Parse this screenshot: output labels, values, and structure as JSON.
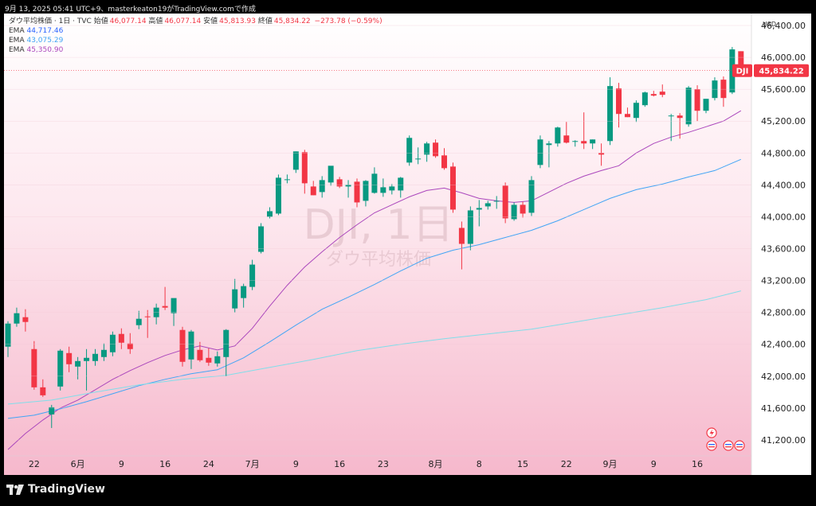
{
  "header": {
    "text": "9月 13, 2025 05:41 UTC+9、masterkeaton19がTradingView.comで作成"
  },
  "legend": {
    "symbol_line": "ダウ平均株価 · 1日 · TVC",
    "open_label": "始値",
    "open_value": "46,077.14",
    "high_label": "高値",
    "high_value": "46,077.14",
    "low_label": "安値",
    "low_value": "45,813.93",
    "close_label": "終値",
    "close_value": "45,834.22",
    "change": "−273.78 (−0.59%)",
    "ema": [
      {
        "label": "EMA",
        "value": "44,717.46",
        "color": "#2962ff"
      },
      {
        "label": "EMA",
        "value": "43,075.29",
        "color": "#42a5f5"
      },
      {
        "label": "EMA",
        "value": "45,350.90",
        "color": "#ab47bc"
      }
    ]
  },
  "watermark": {
    "ticker": "DJI, 1日",
    "name": "ダウ平均株価"
  },
  "price_tag": {
    "symbol": "DJI",
    "value": "45,834.22",
    "color": "#f23645"
  },
  "footer": {
    "brand": "TradingView"
  },
  "chart_data": {
    "type": "candlestick",
    "currency": "USD",
    "ylim": [
      41000,
      46550
    ],
    "y_ticks": [
      41200,
      41600,
      42000,
      42400,
      42800,
      43200,
      43600,
      44000,
      44400,
      44800,
      45200,
      45600,
      46000,
      46400
    ],
    "y_tick_labels": [
      "41,200.00",
      "41,600.00",
      "42,000.00",
      "42,400.00",
      "42,800.00",
      "43,200.00",
      "43,600.00",
      "44,000.00",
      "44,400.00",
      "44,800.00",
      "45,200.00",
      "45,600.00",
      "46,000.00",
      "46,400.00"
    ],
    "x_ticks": [
      {
        "label": "22",
        "index": 3
      },
      {
        "label": "6月",
        "index": 8
      },
      {
        "label": "9",
        "index": 13
      },
      {
        "label": "16",
        "index": 18
      },
      {
        "label": "24",
        "index": 23
      },
      {
        "label": "7月",
        "index": 28
      },
      {
        "label": "9",
        "index": 33
      },
      {
        "label": "16",
        "index": 38
      },
      {
        "label": "23",
        "index": 43
      },
      {
        "label": "8月",
        "index": 49
      },
      {
        "label": "8",
        "index": 54
      },
      {
        "label": "15",
        "index": 59
      },
      {
        "label": "22",
        "index": 64
      },
      {
        "label": "9月",
        "index": 69
      },
      {
        "label": "9",
        "index": 74
      },
      {
        "label": "16",
        "index": 79
      }
    ],
    "candles": [
      {
        "o": 42370,
        "h": 42690,
        "l": 42240,
        "c": 42660
      },
      {
        "o": 42660,
        "h": 42860,
        "l": 42620,
        "c": 42790
      },
      {
        "o": 42740,
        "h": 42840,
        "l": 42560,
        "c": 42680
      },
      {
        "o": 42340,
        "h": 42440,
        "l": 41830,
        "c": 41860
      },
      {
        "o": 41860,
        "h": 41960,
        "l": 41740,
        "c": 41760
      },
      {
        "o": 41520,
        "h": 41640,
        "l": 41350,
        "c": 41610
      },
      {
        "o": 41870,
        "h": 42340,
        "l": 41820,
        "c": 42320
      },
      {
        "o": 42290,
        "h": 42370,
        "l": 42050,
        "c": 42150
      },
      {
        "o": 42120,
        "h": 42240,
        "l": 41960,
        "c": 42190
      },
      {
        "o": 42190,
        "h": 42340,
        "l": 41820,
        "c": 42230
      },
      {
        "o": 42190,
        "h": 42340,
        "l": 42130,
        "c": 42280
      },
      {
        "o": 42240,
        "h": 42410,
        "l": 42190,
        "c": 42330
      },
      {
        "o": 42300,
        "h": 42560,
        "l": 42250,
        "c": 42520
      },
      {
        "o": 42530,
        "h": 42600,
        "l": 42340,
        "c": 42420
      },
      {
        "o": 42410,
        "h": 42540,
        "l": 42280,
        "c": 42340
      },
      {
        "o": 42640,
        "h": 42820,
        "l": 42590,
        "c": 42720
      },
      {
        "o": 42750,
        "h": 42830,
        "l": 42480,
        "c": 42740
      },
      {
        "o": 42740,
        "h": 42910,
        "l": 42650,
        "c": 42860
      },
      {
        "o": 42880,
        "h": 43120,
        "l": 42830,
        "c": 42860
      },
      {
        "o": 42790,
        "h": 42960,
        "l": 42630,
        "c": 42980
      },
      {
        "o": 42580,
        "h": 42620,
        "l": 42120,
        "c": 42180
      },
      {
        "o": 42210,
        "h": 42580,
        "l": 42090,
        "c": 42560
      },
      {
        "o": 42330,
        "h": 42430,
        "l": 42180,
        "c": 42200
      },
      {
        "o": 42230,
        "h": 42350,
        "l": 42130,
        "c": 42170
      },
      {
        "o": 42160,
        "h": 42310,
        "l": 42120,
        "c": 42250
      },
      {
        "o": 42240,
        "h": 42590,
        "l": 42000,
        "c": 42580
      },
      {
        "o": 42850,
        "h": 43220,
        "l": 42800,
        "c": 43090
      },
      {
        "o": 42980,
        "h": 43160,
        "l": 42860,
        "c": 43130
      },
      {
        "o": 43120,
        "h": 43460,
        "l": 43080,
        "c": 43400
      },
      {
        "o": 43560,
        "h": 43920,
        "l": 43540,
        "c": 43880
      },
      {
        "o": 44000,
        "h": 44120,
        "l": 43980,
        "c": 44070
      },
      {
        "o": 44040,
        "h": 44530,
        "l": 44020,
        "c": 44490
      },
      {
        "o": 44470,
        "h": 44530,
        "l": 44420,
        "c": 44470
      },
      {
        "o": 44590,
        "h": 44820,
        "l": 44550,
        "c": 44820
      },
      {
        "o": 44810,
        "h": 44840,
        "l": 44290,
        "c": 44420
      },
      {
        "o": 44380,
        "h": 44450,
        "l": 44270,
        "c": 44270
      },
      {
        "o": 44310,
        "h": 44510,
        "l": 44240,
        "c": 44460
      },
      {
        "o": 44430,
        "h": 44630,
        "l": 44390,
        "c": 44640
      },
      {
        "o": 44470,
        "h": 44500,
        "l": 44360,
        "c": 44380
      },
      {
        "o": 44380,
        "h": 44460,
        "l": 44240,
        "c": 44400
      },
      {
        "o": 44440,
        "h": 44480,
        "l": 44120,
        "c": 44180
      },
      {
        "o": 44200,
        "h": 44460,
        "l": 44130,
        "c": 44450
      },
      {
        "o": 44300,
        "h": 44620,
        "l": 44290,
        "c": 44540
      },
      {
        "o": 44300,
        "h": 44480,
        "l": 44250,
        "c": 44370
      },
      {
        "o": 44330,
        "h": 44410,
        "l": 44280,
        "c": 44380
      },
      {
        "o": 44330,
        "h": 44500,
        "l": 44240,
        "c": 44490
      },
      {
        "o": 44680,
        "h": 45020,
        "l": 44640,
        "c": 44990
      },
      {
        "o": 44720,
        "h": 44870,
        "l": 44660,
        "c": 44730
      },
      {
        "o": 44780,
        "h": 44940,
        "l": 44690,
        "c": 44920
      },
      {
        "o": 44930,
        "h": 44970,
        "l": 44740,
        "c": 44760
      },
      {
        "o": 44770,
        "h": 44860,
        "l": 44590,
        "c": 44610
      },
      {
        "o": 44630,
        "h": 44680,
        "l": 44050,
        "c": 44090
      },
      {
        "o": 43860,
        "h": 43940,
        "l": 43340,
        "c": 43660
      },
      {
        "o": 43660,
        "h": 44130,
        "l": 43580,
        "c": 44080
      },
      {
        "o": 44090,
        "h": 44210,
        "l": 43880,
        "c": 44110
      },
      {
        "o": 44130,
        "h": 44200,
        "l": 44090,
        "c": 44170
      },
      {
        "o": 44190,
        "h": 44260,
        "l": 44100,
        "c": 44200
      },
      {
        "o": 44390,
        "h": 44430,
        "l": 43920,
        "c": 43980
      },
      {
        "o": 43970,
        "h": 44180,
        "l": 43950,
        "c": 44150
      },
      {
        "o": 44150,
        "h": 44190,
        "l": 43990,
        "c": 44040
      },
      {
        "o": 44050,
        "h": 44510,
        "l": 44010,
        "c": 44460
      },
      {
        "o": 44650,
        "h": 45020,
        "l": 44610,
        "c": 44970
      },
      {
        "o": 44900,
        "h": 44950,
        "l": 44620,
        "c": 44920
      },
      {
        "o": 44920,
        "h": 45130,
        "l": 44880,
        "c": 45120
      },
      {
        "o": 45020,
        "h": 45190,
        "l": 44920,
        "c": 44930
      },
      {
        "o": 44940,
        "h": 44960,
        "l": 44880,
        "c": 44950
      },
      {
        "o": 44950,
        "h": 45310,
        "l": 44850,
        "c": 44920
      },
      {
        "o": 44920,
        "h": 44970,
        "l": 44850,
        "c": 44970
      },
      {
        "o": 44800,
        "h": 44920,
        "l": 44640,
        "c": 44780
      },
      {
        "o": 44950,
        "h": 45750,
        "l": 44900,
        "c": 45640
      },
      {
        "o": 45610,
        "h": 45680,
        "l": 45120,
        "c": 45290
      },
      {
        "o": 45290,
        "h": 45370,
        "l": 45250,
        "c": 45250
      },
      {
        "o": 45240,
        "h": 45460,
        "l": 45190,
        "c": 45430
      },
      {
        "o": 45400,
        "h": 45570,
        "l": 45380,
        "c": 45560
      },
      {
        "o": 45540,
        "h": 45580,
        "l": 45510,
        "c": 45520
      },
      {
        "o": 45570,
        "h": 45660,
        "l": 45500,
        "c": 45530
      },
      {
        "o": 45270,
        "h": 45290,
        "l": 44950,
        "c": 45270
      },
      {
        "o": 45270,
        "h": 45300,
        "l": 44980,
        "c": 45240
      },
      {
        "o": 45160,
        "h": 45640,
        "l": 45130,
        "c": 45620
      },
      {
        "o": 45600,
        "h": 45650,
        "l": 45200,
        "c": 45330
      },
      {
        "o": 45330,
        "h": 45480,
        "l": 45300,
        "c": 45480
      },
      {
        "o": 45490,
        "h": 45750,
        "l": 45460,
        "c": 45710
      },
      {
        "o": 45720,
        "h": 45760,
        "l": 45380,
        "c": 45490
      },
      {
        "o": 45560,
        "h": 46130,
        "l": 45540,
        "c": 46100
      },
      {
        "o": 46077.14,
        "h": 46077.14,
        "l": 45813.93,
        "c": 45834.22
      }
    ],
    "series": [
      {
        "name": "EMA",
        "color": "#ab47bc",
        "values": [
          [
            0,
            41080
          ],
          [
            2,
            41280
          ],
          [
            4,
            41450
          ],
          [
            6,
            41600
          ],
          [
            8,
            41700
          ],
          [
            10,
            41830
          ],
          [
            12,
            41960
          ],
          [
            14,
            42070
          ],
          [
            16,
            42170
          ],
          [
            18,
            42260
          ],
          [
            20,
            42330
          ],
          [
            22,
            42380
          ],
          [
            24,
            42330
          ],
          [
            26,
            42380
          ],
          [
            28,
            42600
          ],
          [
            30,
            42880
          ],
          [
            32,
            43140
          ],
          [
            34,
            43370
          ],
          [
            36,
            43560
          ],
          [
            38,
            43740
          ],
          [
            40,
            43900
          ],
          [
            42,
            44050
          ],
          [
            44,
            44150
          ],
          [
            46,
            44250
          ],
          [
            48,
            44330
          ],
          [
            50,
            44360
          ],
          [
            52,
            44300
          ],
          [
            54,
            44230
          ],
          [
            56,
            44200
          ],
          [
            58,
            44180
          ],
          [
            60,
            44200
          ],
          [
            62,
            44310
          ],
          [
            64,
            44420
          ],
          [
            66,
            44510
          ],
          [
            68,
            44580
          ],
          [
            70,
            44640
          ],
          [
            72,
            44800
          ],
          [
            74,
            44920
          ],
          [
            76,
            45000
          ],
          [
            78,
            45060
          ],
          [
            80,
            45130
          ],
          [
            82,
            45200
          ],
          [
            84,
            45330
          ]
        ]
      },
      {
        "name": "EMA",
        "color": "#42a5f5",
        "values": [
          [
            0,
            41470
          ],
          [
            3,
            41510
          ],
          [
            6,
            41590
          ],
          [
            9,
            41680
          ],
          [
            12,
            41780
          ],
          [
            15,
            41880
          ],
          [
            18,
            41960
          ],
          [
            21,
            42030
          ],
          [
            24,
            42080
          ],
          [
            27,
            42230
          ],
          [
            30,
            42430
          ],
          [
            33,
            42640
          ],
          [
            36,
            42840
          ],
          [
            39,
            42990
          ],
          [
            42,
            43150
          ],
          [
            45,
            43320
          ],
          [
            48,
            43480
          ],
          [
            51,
            43580
          ],
          [
            54,
            43650
          ],
          [
            57,
            43740
          ],
          [
            60,
            43830
          ],
          [
            63,
            43950
          ],
          [
            66,
            44090
          ],
          [
            69,
            44230
          ],
          [
            72,
            44340
          ],
          [
            75,
            44410
          ],
          [
            78,
            44500
          ],
          [
            81,
            44580
          ],
          [
            84,
            44720
          ]
        ]
      },
      {
        "name": "EMA",
        "color": "#80deea",
        "values": [
          [
            0,
            41650
          ],
          [
            5,
            41700
          ],
          [
            10,
            41800
          ],
          [
            15,
            41890
          ],
          [
            20,
            41960
          ],
          [
            25,
            42010
          ],
          [
            30,
            42110
          ],
          [
            35,
            42210
          ],
          [
            40,
            42320
          ],
          [
            45,
            42400
          ],
          [
            50,
            42470
          ],
          [
            55,
            42530
          ],
          [
            60,
            42590
          ],
          [
            65,
            42680
          ],
          [
            70,
            42770
          ],
          [
            75,
            42860
          ],
          [
            80,
            42960
          ],
          [
            84,
            43070
          ]
        ]
      }
    ]
  }
}
